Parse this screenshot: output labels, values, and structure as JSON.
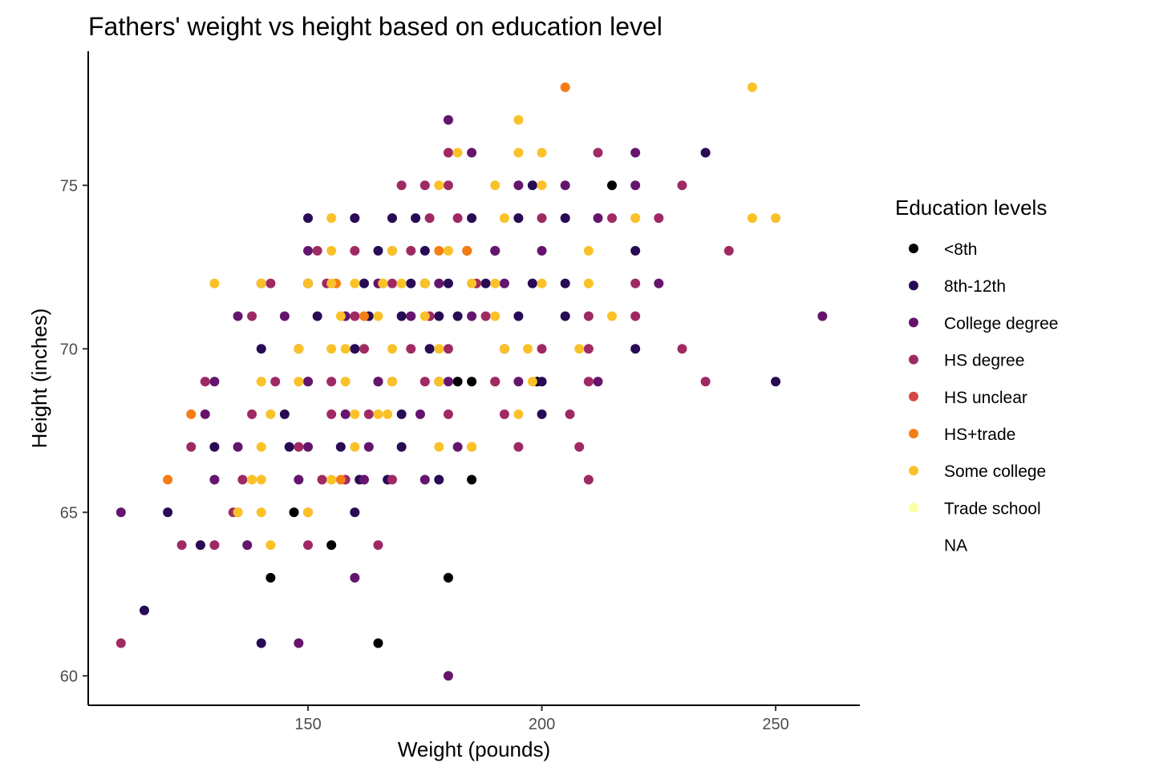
{
  "chart_data": {
    "type": "scatter",
    "title": "Fathers' weight vs height based on education level",
    "xlabel": "Weight (pounds)",
    "ylabel": "Height (inches)",
    "xlim": [
      103,
      268
    ],
    "ylim": [
      59.1,
      79.1
    ],
    "x_ticks": [
      150,
      200,
      250
    ],
    "y_ticks": [
      60,
      65,
      70,
      75
    ],
    "grid": false,
    "legend": {
      "title": "Education levels",
      "placement": "right",
      "entries": [
        {
          "label": "<8th",
          "color": "#000004"
        },
        {
          "label": "8th-12th",
          "color": "#280b54"
        },
        {
          "label": "College degree",
          "color": "#65156e"
        },
        {
          "label": "HS degree",
          "color": "#9f2a63"
        },
        {
          "label": "HS unclear",
          "color": "#d44842"
        },
        {
          "label": "HS+trade",
          "color": "#f57d15"
        },
        {
          "label": "Some college",
          "color": "#fac228"
        },
        {
          "label": "Trade school",
          "color": "#fcffa4"
        },
        {
          "label": "NA",
          "color": "#ffffff"
        }
      ]
    },
    "series": [
      {
        "name": "<8th",
        "color": "#000004",
        "points": [
          [
            215,
            75
          ],
          [
            182,
            69
          ],
          [
            185,
            69
          ],
          [
            199,
            69
          ],
          [
            185,
            66
          ],
          [
            147,
            65
          ],
          [
            155,
            64
          ],
          [
            142,
            63
          ],
          [
            180,
            63
          ],
          [
            165,
            61
          ]
        ]
      },
      {
        "name": "8th-12th",
        "color": "#280b54",
        "points": [
          [
            235,
            76
          ],
          [
            198,
            75
          ],
          [
            185,
            74
          ],
          [
            195,
            74
          ],
          [
            205,
            74
          ],
          [
            220,
            73
          ],
          [
            220,
            70
          ],
          [
            250,
            69
          ],
          [
            120,
            65
          ],
          [
            160,
            65
          ],
          [
            127,
            64
          ],
          [
            115,
            62
          ],
          [
            140,
            61
          ],
          [
            150,
            74
          ],
          [
            160,
            74
          ],
          [
            168,
            74
          ],
          [
            173,
            74
          ],
          [
            165,
            73
          ],
          [
            175,
            73
          ],
          [
            184,
            73
          ],
          [
            152,
            71
          ],
          [
            163,
            71
          ],
          [
            170,
            71
          ],
          [
            178,
            71
          ],
          [
            182,
            71
          ],
          [
            195,
            71
          ],
          [
            205,
            71
          ],
          [
            140,
            70
          ],
          [
            160,
            70
          ],
          [
            176,
            70
          ],
          [
            192,
            70
          ],
          [
            130,
            67
          ],
          [
            146,
            67
          ],
          [
            157,
            67
          ],
          [
            170,
            67
          ],
          [
            200,
            68
          ],
          [
            161,
            66
          ],
          [
            167,
            66
          ],
          [
            178,
            66
          ],
          [
            145,
            68
          ],
          [
            170,
            68
          ],
          [
            150,
            72
          ],
          [
            162,
            72
          ],
          [
            175,
            72
          ],
          [
            188,
            72
          ],
          [
            198,
            72
          ],
          [
            150,
            69
          ],
          [
            165,
            69
          ],
          [
            178,
            69
          ],
          [
            200,
            69
          ],
          [
            190,
            73
          ],
          [
            180,
            72
          ],
          [
            172,
            72
          ],
          [
            205,
            72
          ]
        ]
      },
      {
        "name": "College degree",
        "color": "#65156e",
        "points": [
          [
            180,
            77
          ],
          [
            185,
            76
          ],
          [
            220,
            76
          ],
          [
            195,
            75
          ],
          [
            205,
            75
          ],
          [
            220,
            75
          ],
          [
            260,
            71
          ],
          [
            110,
            65
          ],
          [
            160,
            63
          ],
          [
            148,
            61
          ],
          [
            180,
            60
          ],
          [
            150,
            73
          ],
          [
            168,
            73
          ],
          [
            190,
            73
          ],
          [
            200,
            73
          ],
          [
            135,
            71
          ],
          [
            145,
            71
          ],
          [
            158,
            71
          ],
          [
            172,
            71
          ],
          [
            185,
            71
          ],
          [
            140,
            72
          ],
          [
            150,
            72
          ],
          [
            165,
            72
          ],
          [
            178,
            72
          ],
          [
            192,
            72
          ],
          [
            130,
            69
          ],
          [
            150,
            69
          ],
          [
            165,
            69
          ],
          [
            180,
            69
          ],
          [
            195,
            69
          ],
          [
            212,
            69
          ],
          [
            135,
            67
          ],
          [
            150,
            67
          ],
          [
            163,
            67
          ],
          [
            182,
            67
          ],
          [
            130,
            66
          ],
          [
            148,
            66
          ],
          [
            162,
            66
          ],
          [
            175,
            66
          ],
          [
            137,
            64
          ],
          [
            128,
            68
          ],
          [
            158,
            68
          ],
          [
            174,
            68
          ],
          [
            190,
            69
          ],
          [
            225,
            72
          ],
          [
            212,
            74
          ]
        ]
      },
      {
        "name": "HS degree",
        "color": "#9f2a63",
        "points": [
          [
            180,
            76
          ],
          [
            212,
            76
          ],
          [
            170,
            75
          ],
          [
            175,
            75
          ],
          [
            180,
            75
          ],
          [
            230,
            75
          ],
          [
            240,
            73
          ],
          [
            225,
            74
          ],
          [
            235,
            69
          ],
          [
            230,
            70
          ],
          [
            110,
            61
          ],
          [
            123,
            64
          ],
          [
            130,
            64
          ],
          [
            150,
            64
          ],
          [
            165,
            64
          ],
          [
            125,
            67
          ],
          [
            134,
            65
          ],
          [
            150,
            65
          ],
          [
            128,
            69
          ],
          [
            138,
            71
          ],
          [
            152,
            73
          ],
          [
            160,
            73
          ],
          [
            176,
            74
          ],
          [
            182,
            74
          ],
          [
            200,
            74
          ],
          [
            215,
            74
          ],
          [
            142,
            72
          ],
          [
            154,
            72
          ],
          [
            168,
            72
          ],
          [
            186,
            72
          ],
          [
            210,
            71
          ],
          [
            220,
            71
          ],
          [
            160,
            71
          ],
          [
            176,
            71
          ],
          [
            188,
            71
          ],
          [
            148,
            70
          ],
          [
            162,
            70
          ],
          [
            172,
            70
          ],
          [
            180,
            70
          ],
          [
            200,
            70
          ],
          [
            210,
            70
          ],
          [
            138,
            68
          ],
          [
            155,
            68
          ],
          [
            163,
            68
          ],
          [
            180,
            68
          ],
          [
            192,
            68
          ],
          [
            206,
            68
          ],
          [
            136,
            66
          ],
          [
            153,
            66
          ],
          [
            168,
            66
          ],
          [
            185,
            67
          ],
          [
            195,
            67
          ],
          [
            208,
            67
          ],
          [
            210,
            66
          ],
          [
            143,
            69
          ],
          [
            155,
            69
          ],
          [
            168,
            69
          ],
          [
            175,
            69
          ],
          [
            190,
            69
          ],
          [
            210,
            69
          ],
          [
            220,
            72
          ],
          [
            172,
            73
          ],
          [
            148,
            67
          ],
          [
            158,
            66
          ]
        ]
      },
      {
        "name": "HS unclear",
        "color": "#d44842",
        "points": [
          [
            135,
            65
          ]
        ]
      },
      {
        "name": "HS+trade",
        "color": "#f57d15",
        "points": [
          [
            205,
            78
          ],
          [
            120,
            66
          ],
          [
            125,
            68
          ],
          [
            156,
            72
          ],
          [
            162,
            71
          ],
          [
            175,
            72
          ],
          [
            178,
            73
          ],
          [
            157,
            66
          ],
          [
            166,
            72
          ],
          [
            184,
            73
          ]
        ]
      },
      {
        "name": "Some college",
        "color": "#fac228",
        "points": [
          [
            245,
            78
          ],
          [
            195,
            77
          ],
          [
            182,
            76
          ],
          [
            195,
            76
          ],
          [
            200,
            76
          ],
          [
            190,
            75
          ],
          [
            178,
            75
          ],
          [
            200,
            75
          ],
          [
            245,
            74
          ],
          [
            250,
            74
          ],
          [
            150,
            72
          ],
          [
            130,
            72
          ],
          [
            140,
            72
          ],
          [
            140,
            69
          ],
          [
            140,
            67
          ],
          [
            140,
            65
          ],
          [
            140,
            66
          ],
          [
            142,
            64
          ],
          [
            148,
            70
          ],
          [
            155,
            70
          ],
          [
            160,
            72
          ],
          [
            166,
            72
          ],
          [
            170,
            72
          ],
          [
            175,
            72
          ],
          [
            200,
            72
          ],
          [
            210,
            72
          ],
          [
            220,
            74
          ],
          [
            155,
            73
          ],
          [
            168,
            73
          ],
          [
            180,
            73
          ],
          [
            210,
            73
          ],
          [
            157,
            71
          ],
          [
            165,
            71
          ],
          [
            175,
            71
          ],
          [
            190,
            71
          ],
          [
            215,
            71
          ],
          [
            158,
            70
          ],
          [
            168,
            70
          ],
          [
            178,
            70
          ],
          [
            197,
            70
          ],
          [
            208,
            70
          ],
          [
            148,
            69
          ],
          [
            158,
            69
          ],
          [
            168,
            69
          ],
          [
            178,
            69
          ],
          [
            192,
            70
          ],
          [
            142,
            68
          ],
          [
            160,
            68
          ],
          [
            165,
            68
          ],
          [
            178,
            67
          ],
          [
            195,
            68
          ],
          [
            155,
            66
          ],
          [
            150,
            65
          ],
          [
            135,
            65
          ],
          [
            138,
            66
          ],
          [
            185,
            67
          ],
          [
            155,
            72
          ],
          [
            190,
            72
          ],
          [
            185,
            72
          ],
          [
            155,
            74
          ],
          [
            192,
            74
          ],
          [
            220,
            74
          ],
          [
            160,
            67
          ],
          [
            167,
            68
          ],
          [
            198,
            69
          ]
        ]
      }
    ]
  }
}
